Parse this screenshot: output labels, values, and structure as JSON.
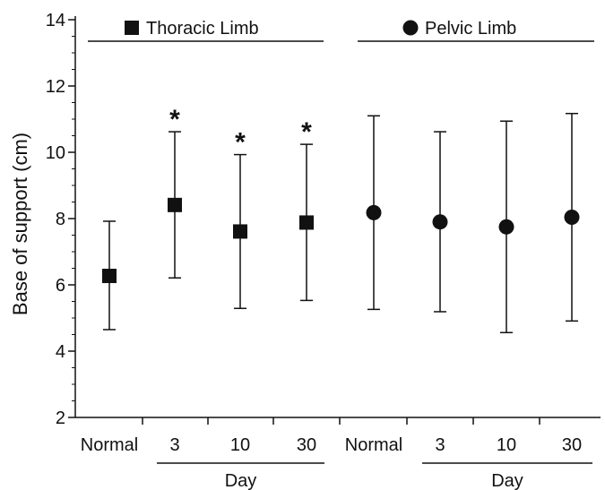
{
  "chart_data": {
    "type": "scatter",
    "ylabel": "Base of support (cm)",
    "ylim": [
      2,
      14
    ],
    "yticks": [
      "2",
      "4",
      "6",
      "8",
      "10",
      "12",
      "14"
    ],
    "categories": [
      "Normal",
      "3",
      "10",
      "30",
      "Normal",
      "3",
      "10",
      "30"
    ],
    "day_labels": [
      "Day",
      "Day"
    ],
    "series": [
      {
        "name": "Thoracic Limb",
        "marker": "square",
        "category_index": [
          0,
          1,
          2,
          3
        ],
        "mean": [
          6.27,
          8.41,
          7.61,
          7.88
        ],
        "upper": [
          7.92,
          10.62,
          9.93,
          10.24
        ],
        "lower": [
          4.65,
          6.21,
          5.29,
          5.53
        ],
        "significance": [
          "",
          "*",
          "*",
          "*"
        ]
      },
      {
        "name": "Pelvic Limb",
        "marker": "circle",
        "category_index": [
          4,
          5,
          6,
          7
        ],
        "mean": [
          8.18,
          7.9,
          7.75,
          8.04
        ],
        "upper": [
          11.1,
          10.62,
          10.94,
          11.17
        ],
        "lower": [
          5.26,
          5.19,
          4.56,
          4.91
        ],
        "significance": [
          "",
          "",
          "",
          ""
        ]
      }
    ],
    "grid": false,
    "legend": "top, above each group"
  }
}
